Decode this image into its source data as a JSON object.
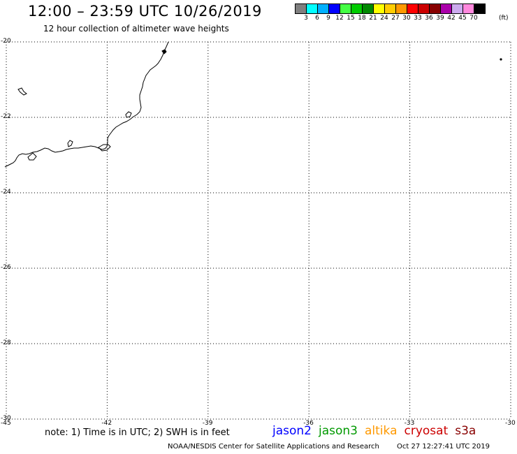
{
  "title": "12:00 – 23:59 UTC 10/26/2019",
  "subtitle": "12 hour collection of altimeter wave heights",
  "legend": {
    "colors": [
      "#7f7f7f",
      "#00ffff",
      "#00b0ff",
      "#0000ff",
      "#44ff44",
      "#00cc00",
      "#008800",
      "#ffff00",
      "#ffcc00",
      "#ff9900",
      "#ff0000",
      "#cc0000",
      "#880000",
      "#aa00aa",
      "#ccaaee",
      "#ff88dd",
      "#000000"
    ],
    "labels": [
      "3",
      "6",
      "9",
      "12",
      "15",
      "18",
      "21",
      "24",
      "27",
      "30",
      "33",
      "36",
      "39",
      "42",
      "45",
      "70"
    ],
    "unit": "(ft)"
  },
  "map": {
    "lon_min": -45,
    "lon_max": -30,
    "lat_min": -30,
    "lat_max": -20,
    "lon_ticks": [
      "-45",
      "-42",
      "-39",
      "-36",
      "-33",
      "-30"
    ],
    "lat_ticks": [
      "-20",
      "-22",
      "-24",
      "-26",
      "-28",
      "-30"
    ],
    "grid": "dotted"
  },
  "note": "note:  1) Time is in UTC;  2) SWH is in feet",
  "satellites": [
    {
      "name": "jason2",
      "color": "#0000ff"
    },
    {
      "name": "jason3",
      "color": "#009900"
    },
    {
      "name": "altika",
      "color": "#ff9900"
    },
    {
      "name": "cryosat",
      "color": "#cc0000"
    },
    {
      "name": "s3a",
      "color": "#880000"
    }
  ],
  "footer": {
    "credit": "NOAA/NESDIS Center for Satellite Applications and Research",
    "timestamp": "Oct 27 12:27:41 UTC 2019"
  }
}
